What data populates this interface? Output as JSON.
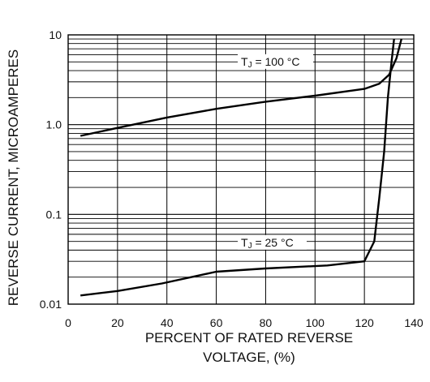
{
  "chart_data": {
    "type": "line",
    "title": "",
    "xlabel_lines": [
      "PERCENT OF RATED REVERSE",
      "VOLTAGE, (%)"
    ],
    "ylabel": "REVERSE CURRENT, MICROAMPERES",
    "xlim": [
      0,
      140
    ],
    "ylim": [
      0.01,
      10
    ],
    "y_scale": "log",
    "grid": true,
    "x_ticks": [
      0,
      20,
      40,
      60,
      80,
      100,
      120,
      140
    ],
    "x_tick_labels": [
      "0",
      "20",
      "40",
      "60",
      "80",
      "100",
      "120",
      "140"
    ],
    "y_ticks": [
      0.01,
      0.1,
      1.0,
      10
    ],
    "y_tick_labels": [
      "0.01",
      "0.1",
      "1.0",
      "10"
    ],
    "series": [
      {
        "name": "TJ = 100 °C",
        "label_main": "T",
        "label_sub": "J",
        "label_rest": " = 100 °C",
        "points": [
          [
            5,
            0.75
          ],
          [
            20,
            0.92
          ],
          [
            40,
            1.2
          ],
          [
            60,
            1.5
          ],
          [
            80,
            1.8
          ],
          [
            100,
            2.1
          ],
          [
            120,
            2.5
          ],
          [
            126,
            2.85
          ],
          [
            130,
            3.6
          ],
          [
            133,
            5.5
          ],
          [
            135,
            9.0
          ]
        ]
      },
      {
        "name": "TJ = 25 °C",
        "label_main": "T",
        "label_sub": "J",
        "label_rest": " = 25 °C",
        "points": [
          [
            5,
            0.0125
          ],
          [
            20,
            0.014
          ],
          [
            38,
            0.017
          ],
          [
            60,
            0.023
          ],
          [
            80,
            0.025
          ],
          [
            105,
            0.027
          ],
          [
            120,
            0.03
          ],
          [
            124,
            0.05
          ],
          [
            126,
            0.15
          ],
          [
            128,
            0.5
          ],
          [
            129.5,
            2.0
          ],
          [
            131,
            5.0
          ],
          [
            132,
            9.0
          ]
        ]
      }
    ]
  }
}
